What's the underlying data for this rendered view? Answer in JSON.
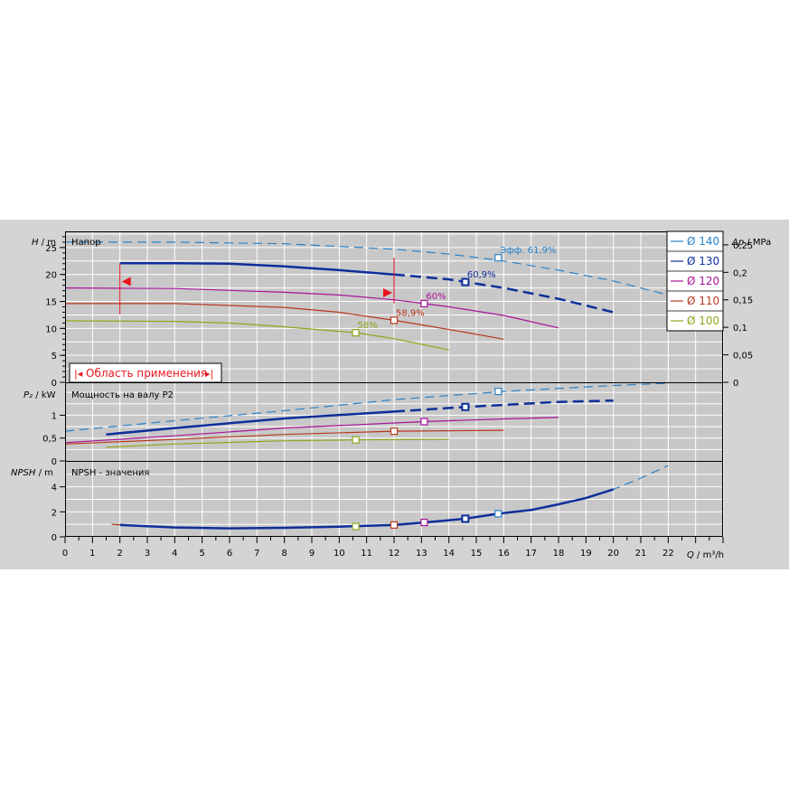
{
  "colors": {
    "d140": "#2a82c8",
    "d130": "#0e2f9a",
    "d120": "#a8129a",
    "d110": "#b8391e",
    "d100": "#8da81c",
    "range": "#e8141e"
  },
  "panels": {
    "head_title": "Напор",
    "power_title": "Мощность на валу P2",
    "npsh_title": "NPSH - значения",
    "range_label": "Область применения",
    "eff_prefix": "Эфф."
  },
  "axis_labels": {
    "h": {
      "sym": "H",
      "unit": " / m"
    },
    "dp": {
      "sym": "Δp",
      "unit": " / MPa"
    },
    "p2": {
      "sym": "P₂",
      "unit": " / kW"
    },
    "npsh": {
      "sym": "NPSH",
      "unit": " / m"
    },
    "q": {
      "sym": "Q",
      "unit": " / m³/h"
    }
  },
  "legend": [
    {
      "key": "d140",
      "label": "Ø 140"
    },
    {
      "key": "d130",
      "label": "Ø 130"
    },
    {
      "key": "d120",
      "label": "Ø 120"
    },
    {
      "key": "d110",
      "label": "Ø 110"
    },
    {
      "key": "d100",
      "label": "Ø 100"
    }
  ],
  "chart_data": {
    "type": "line",
    "x_axis": {
      "label": "Q / m³/h",
      "range": [
        0,
        24
      ],
      "ticks": [
        0,
        1,
        2,
        3,
        4,
        5,
        6,
        7,
        8,
        9,
        10,
        11,
        12,
        13,
        14,
        15,
        16,
        17,
        18,
        19,
        20,
        21,
        22
      ]
    },
    "head": {
      "ylabel": "H / m",
      "range": [
        0,
        28
      ],
      "ticks": [
        0,
        5,
        10,
        15,
        20,
        25
      ],
      "right_axis": {
        "label": "Δp / MPa",
        "ticks": [
          "0",
          "0,05",
          "0,1",
          "0,15",
          "0,2",
          "0,25"
        ]
      },
      "series": [
        {
          "key": "d140",
          "dashed": true,
          "points": [
            [
              0,
              26
            ],
            [
              4,
              26
            ],
            [
              8,
              25.7
            ],
            [
              12,
              24.7
            ],
            [
              14,
              23.8
            ],
            [
              16,
              22.5
            ],
            [
              18,
              20.8
            ],
            [
              20,
              18.8
            ],
            [
              22,
              16.2
            ],
            [
              24,
              12.8
            ]
          ],
          "bep": [
            15.8,
            23.1
          ],
          "eff_label": "61,9%"
        },
        {
          "key": "d130",
          "points": [
            [
              2,
              22.1
            ],
            [
              4,
              22.1
            ],
            [
              6,
              22
            ],
            [
              8,
              21.5
            ],
            [
              10,
              20.8
            ],
            [
              12,
              20.0
            ],
            [
              14,
              19.1
            ],
            [
              16,
              17.5
            ],
            [
              18,
              15.5
            ],
            [
              20,
              13.0
            ]
          ],
          "dash_from": 12,
          "bep": [
            14.6,
            18.6
          ],
          "eff_label": "60,9%"
        },
        {
          "key": "d120",
          "points": [
            [
              0,
              17.5
            ],
            [
              4,
              17.4
            ],
            [
              8,
              16.7
            ],
            [
              10,
              16.2
            ],
            [
              12,
              15.3
            ],
            [
              13.1,
              14.6
            ],
            [
              14,
              14.0
            ],
            [
              16,
              12.4
            ],
            [
              18,
              10.1
            ]
          ],
          "bep": [
            13.1,
            14.6
          ],
          "eff_label": "60%"
        },
        {
          "key": "d110",
          "points": [
            [
              0,
              14.6
            ],
            [
              4,
              14.6
            ],
            [
              8,
              13.9
            ],
            [
              10,
              13.0
            ],
            [
              12,
              11.5
            ],
            [
              14,
              9.8
            ],
            [
              16,
              8.0
            ]
          ],
          "bep": [
            12.0,
            11.5
          ],
          "eff_label": "58,9%"
        },
        {
          "key": "d100",
          "points": [
            [
              0,
              11.4
            ],
            [
              4,
              11.3
            ],
            [
              6,
              11.0
            ],
            [
              8,
              10.3
            ],
            [
              10.6,
              9.2
            ],
            [
              12,
              8.1
            ],
            [
              14,
              6.0
            ]
          ],
          "bep": [
            10.6,
            9.2
          ],
          "eff_label": "58%"
        }
      ],
      "application_range": {
        "q_min": 2,
        "q_max": 12,
        "h_min": 13.3,
        "h_max": 22.1
      }
    },
    "power": {
      "ylabel": "P₂ / kW",
      "range": [
        0,
        1.7
      ],
      "ticks": [
        {
          "v": 0,
          "t": "0"
        },
        {
          "v": 0.5,
          "t": "0,5"
        },
        {
          "v": 1,
          "t": "1"
        }
      ],
      "series": [
        {
          "key": "d140",
          "dashed": true,
          "points": [
            [
              0,
              0.65
            ],
            [
              4,
              0.88
            ],
            [
              8,
              1.1
            ],
            [
              12,
              1.34
            ],
            [
              16,
              1.52
            ],
            [
              20,
              1.65
            ],
            [
              22,
              1.7
            ]
          ],
          "bep": [
            15.8,
            1.52
          ]
        },
        {
          "key": "d130",
          "points": [
            [
              1.5,
              0.58
            ],
            [
              4,
              0.72
            ],
            [
              8,
              0.93
            ],
            [
              12,
              1.08
            ],
            [
              14.6,
              1.18
            ],
            [
              18,
              1.29
            ],
            [
              20,
              1.32
            ]
          ],
          "dash_from": 12,
          "bep": [
            14.6,
            1.18
          ]
        },
        {
          "key": "d120",
          "points": [
            [
              0,
              0.4
            ],
            [
              4,
              0.55
            ],
            [
              8,
              0.72
            ],
            [
              13.1,
              0.86
            ],
            [
              16,
              0.92
            ],
            [
              18,
              0.95
            ]
          ],
          "bep": [
            13.1,
            0.86
          ]
        },
        {
          "key": "d110",
          "points": [
            [
              0,
              0.37
            ],
            [
              4,
              0.47
            ],
            [
              8,
              0.58
            ],
            [
              12,
              0.65
            ],
            [
              14,
              0.66
            ],
            [
              16,
              0.67
            ]
          ],
          "bep": [
            12.0,
            0.65
          ]
        },
        {
          "key": "d100",
          "points": [
            [
              1.5,
              0.3
            ],
            [
              4,
              0.37
            ],
            [
              8,
              0.44
            ],
            [
              10.6,
              0.46
            ],
            [
              14,
              0.47
            ]
          ],
          "bep": [
            10.6,
            0.46
          ]
        }
      ]
    },
    "npsh": {
      "ylabel": "NPSH / m",
      "range": [
        0,
        6
      ],
      "ticks": [
        0,
        2,
        4
      ],
      "series": [
        {
          "key": "d140",
          "dashed": true,
          "points": [
            [
              15.8,
              1.85
            ],
            [
              17,
              2.15
            ],
            [
              18,
              2.6
            ],
            [
              19,
              3.1
            ],
            [
              20,
              3.8
            ],
            [
              21,
              4.7
            ],
            [
              22,
              5.7
            ]
          ],
          "bep": [
            15.8,
            1.85
          ]
        },
        {
          "key": "d130",
          "points": [
            [
              2,
              0.95
            ],
            [
              4,
              0.75
            ],
            [
              6,
              0.68
            ],
            [
              8,
              0.72
            ],
            [
              10,
              0.82
            ],
            [
              12,
              0.95
            ],
            [
              13.1,
              1.15
            ],
            [
              14.6,
              1.45
            ],
            [
              15.8,
              1.85
            ],
            [
              17,
              2.15
            ],
            [
              18,
              2.6
            ],
            [
              19,
              3.1
            ],
            [
              20,
              3.8
            ]
          ],
          "bep": [
            14.6,
            1.45
          ]
        },
        {
          "key": "d120",
          "points": [
            [
              13.1,
              1.15
            ]
          ],
          "bep": [
            13.1,
            1.15
          ]
        },
        {
          "key": "d110",
          "points": [
            [
              1.7,
              1.0
            ],
            [
              2,
              0.97
            ]
          ],
          "bep": [
            12.0,
            0.95
          ]
        },
        {
          "key": "d100",
          "points": [
            [
              10.6,
              0.83
            ]
          ],
          "bep": [
            10.6,
            0.83
          ]
        }
      ]
    }
  }
}
